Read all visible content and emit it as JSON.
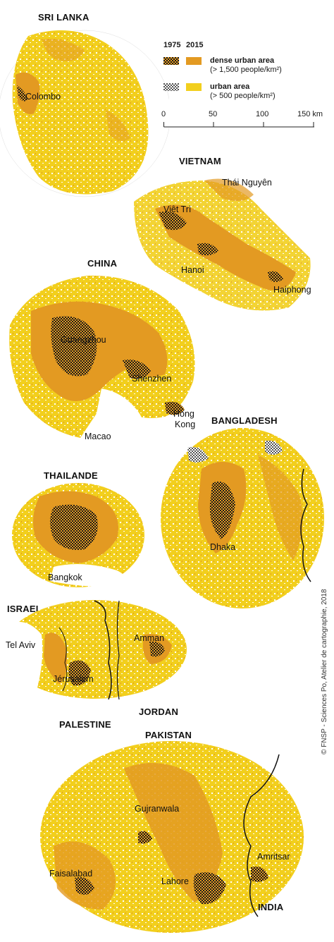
{
  "colors": {
    "dense_urban": "#e39a22",
    "urban": "#f2cf1d",
    "dense_1975": "#1a1a1a",
    "background": "#ffffff"
  },
  "legend": {
    "year_1975": "1975",
    "year_2015": "2015",
    "dense_label": "dense urban area",
    "dense_threshold": "(> 1,500 people/km²)",
    "urban_label": "urban area",
    "urban_threshold": "(> 500 people/km²)"
  },
  "scale": {
    "ticks": [
      "0",
      "50",
      "100",
      "150 km"
    ]
  },
  "countries": {
    "sri_lanka": "SRI LANKA",
    "vietnam": "VIETNAM",
    "china": "CHINA",
    "bangladesh": "BANGLADESH",
    "thailande": "THAILANDE",
    "israel": "ISRAEL",
    "jordan": "JORDAN",
    "palestine": "PALESTINE",
    "pakistan": "PAKISTAN",
    "india": "INDIA"
  },
  "cities": {
    "colombo": "Colombo",
    "thai_nguyen": "Thái Nguyên",
    "viet_tri": "Việt Trì",
    "hanoi": "Hanoi",
    "haiphong": "Haiphong",
    "guangzhou": "Guangzhou",
    "shenzhen": "Shenzhen",
    "hong_kong_1": "Hong",
    "hong_kong_2": "Kong",
    "macao": "Macao",
    "bangkok": "Bangkok",
    "dhaka": "Dhaka",
    "tel_aviv": "Tel Aviv",
    "amman": "Amman",
    "jerusalem": "Jérusalem",
    "gujranwala": "Gujranwala",
    "amritsar": "Amritsar",
    "faisalabad": "Faisalabad",
    "lahore": "Lahore"
  },
  "credit": "© FNSP - Sciences Po, Atelier de cartographie, 2018"
}
